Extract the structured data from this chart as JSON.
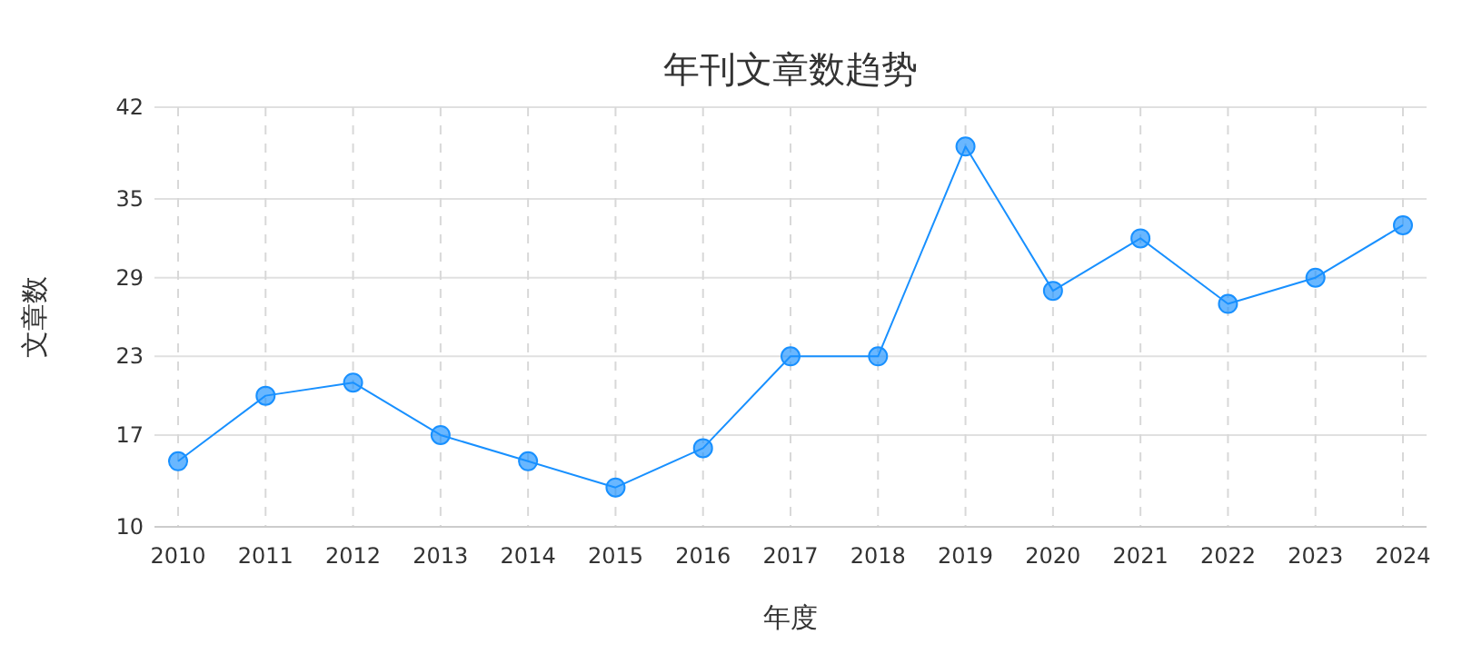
{
  "chart_data": {
    "type": "line",
    "title": "年刊文章数趋势",
    "xlabel": "年度",
    "ylabel": "文章数",
    "categories": [
      "2010",
      "2011",
      "2012",
      "2013",
      "2014",
      "2015",
      "2016",
      "2017",
      "2018",
      "2019",
      "2020",
      "2021",
      "2022",
      "2023",
      "2024"
    ],
    "series": [
      {
        "color": "#1890ff",
        "values": [
          15,
          20,
          21,
          17,
          15,
          13,
          16,
          23,
          23,
          39,
          28,
          32,
          27,
          29,
          33
        ]
      }
    ],
    "ylim": [
      10,
      42
    ],
    "yticks": [
      10,
      17,
      23,
      29,
      35,
      42
    ],
    "grid": true,
    "marker": "circle",
    "line_style": "solid"
  }
}
